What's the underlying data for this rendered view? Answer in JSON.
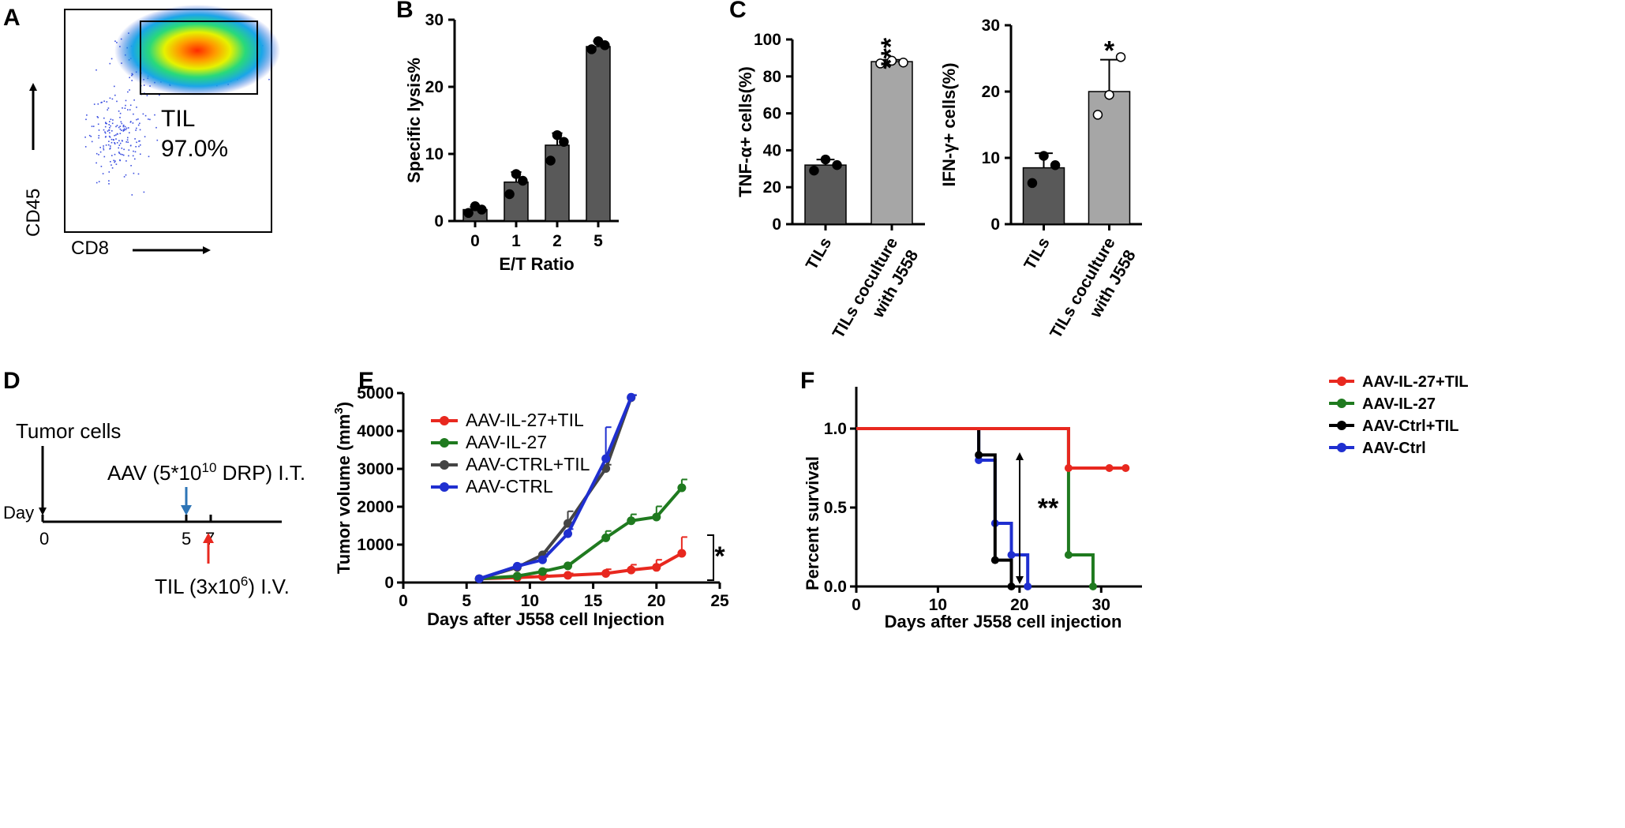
{
  "panels": {
    "a": "A",
    "b": "B",
    "c": "C",
    "d": "D",
    "e": "E",
    "f": "F"
  },
  "flow_plot": {
    "gate_label": "TIL",
    "gate_percent": "97.0%",
    "y_marker": "CD45",
    "x_marker": "CD8"
  },
  "timeline": {
    "day_label": "Day",
    "days": [
      "0",
      "5",
      "7"
    ],
    "tumor_label": "Tumor cells",
    "aav_label": "AAV (5*10",
    "aav_exp": "10",
    "aav_unit": " DRP)  I.T.",
    "til_label": "TIL (3x10",
    "til_exp": "6",
    "til_unit": ")  I.V.",
    "colors": {
      "aav_arrow": "#2e75b6",
      "til_arrow": "#e8281f"
    }
  },
  "chart_data": [
    {
      "id": "B",
      "type": "bar",
      "title": "",
      "categories": [
        "0",
        "1",
        "2",
        "5"
      ],
      "values": [
        1.7,
        5.8,
        11.3,
        26.0
      ],
      "errors": [
        0.4,
        1.5,
        1.8,
        0.8
      ],
      "points": [
        [
          1.2,
          2.2,
          1.7
        ],
        [
          4.0,
          7.0,
          6.0
        ],
        [
          9.0,
          12.8,
          11.8
        ],
        [
          25.6,
          26.8,
          26.2
        ]
      ],
      "xlabel": "E/T Ratio",
      "ylabel": "Specific lysis%",
      "ylim": [
        0,
        30
      ],
      "yticks": [
        0,
        10,
        20,
        30
      ],
      "bar_color": "#595959"
    },
    {
      "id": "C-left",
      "type": "bar",
      "categories": [
        "TILs",
        "TILs coculture"
      ],
      "category_line2": [
        "",
        "with J558"
      ],
      "values": [
        32,
        88
      ],
      "errors": [
        3,
        1
      ],
      "points": [
        [
          29,
          35,
          32
        ],
        [
          87,
          88.5,
          87.5
        ]
      ],
      "hollow": [
        false,
        true
      ],
      "xlabel": "",
      "ylabel": "TNF-α+ cells(%)",
      "ylim": [
        0,
        100
      ],
      "yticks": [
        0,
        20,
        40,
        60,
        80,
        100
      ],
      "significance": [
        "",
        "***"
      ],
      "bar_colors": [
        "#595959",
        "#a6a6a6"
      ]
    },
    {
      "id": "C-right",
      "type": "bar",
      "categories": [
        "TILs",
        "TILs coculture"
      ],
      "category_line2": [
        "",
        "with J558"
      ],
      "values": [
        8.5,
        20
      ],
      "errors": [
        2.2,
        4.8
      ],
      "points": [
        [
          6.2,
          10.3,
          8.9
        ],
        [
          16.5,
          19.5,
          25.2
        ]
      ],
      "hollow": [
        false,
        true
      ],
      "xlabel": "",
      "ylabel": "IFN-γ+ cells(%)",
      "ylim": [
        0,
        30
      ],
      "yticks": [
        0,
        10,
        20,
        30
      ],
      "significance": [
        "",
        "*"
      ],
      "bar_colors": [
        "#595959",
        "#a6a6a6"
      ]
    },
    {
      "id": "E",
      "type": "line",
      "xlabel": "Days after J558 cell Injection",
      "ylabel": "Tumor volume (mm",
      "ylabel_sup": "3",
      "ylabel_close": ")",
      "xlim": [
        0,
        25
      ],
      "ylim": [
        0,
        5000
      ],
      "xticks": [
        0,
        5,
        10,
        15,
        20,
        25
      ],
      "yticks": [
        0,
        1000,
        2000,
        3000,
        4000,
        5000
      ],
      "significance": "*",
      "series": [
        {
          "name": "AAV-IL-27+TIL",
          "color": "#e8281f",
          "x": [
            6,
            9,
            11,
            13,
            16,
            18,
            20,
            22
          ],
          "y": [
            100,
            130,
            160,
            190,
            240,
            330,
            400,
            770
          ],
          "err": [
            20,
            30,
            40,
            50,
            110,
            140,
            200,
            430
          ]
        },
        {
          "name": "AAV-IL-27",
          "color": "#1f7a1f",
          "x": [
            6,
            9,
            11,
            13,
            16,
            18,
            20,
            22
          ],
          "y": [
            100,
            170,
            290,
            440,
            1180,
            1630,
            1730,
            2500
          ],
          "err": [
            20,
            40,
            60,
            70,
            180,
            170,
            280,
            220
          ]
        },
        {
          "name": "AAV-CTRL+TIL",
          "color": "#444444",
          "x": [
            6,
            9,
            11,
            13,
            16,
            18
          ],
          "y": [
            100,
            400,
            730,
            1560,
            3010,
            4880
          ],
          "err": [
            20,
            60,
            90,
            320,
            100,
            60
          ]
        },
        {
          "name": "AAV-CTRL",
          "color": "#1f2fd0",
          "x": [
            6,
            9,
            11,
            13,
            16,
            18
          ],
          "y": [
            100,
            430,
            600,
            1290,
            3270,
            4890
          ],
          "err": [
            20,
            60,
            80,
            120,
            830,
            60
          ]
        }
      ]
    },
    {
      "id": "F",
      "type": "line",
      "subtype": "survival-step",
      "xlabel": "Days after J558 cell injection",
      "ylabel": "Percent survival",
      "xlim": [
        0,
        35
      ],
      "ylim": [
        0,
        1.0
      ],
      "xticks": [
        0,
        10,
        20,
        30
      ],
      "yticks": [
        "0.0",
        "0.5",
        "1.0"
      ],
      "significance": "**",
      "series": [
        {
          "name": "AAV-IL-27+TIL",
          "color": "#e8281f",
          "steps": [
            [
              0,
              1.0
            ],
            [
              26,
              0.75
            ],
            [
              33,
              0.75
            ]
          ],
          "marks": [
            [
              26,
              0.75
            ],
            [
              31,
              0.75
            ],
            [
              33,
              0.75
            ]
          ]
        },
        {
          "name": "AAV-IL-27",
          "color": "#1f7a1f",
          "steps": [
            [
              0,
              1.0
            ],
            [
              26,
              0.2
            ],
            [
              29,
              0.0
            ]
          ],
          "marks": [
            [
              26,
              0.2
            ],
            [
              29,
              0.0
            ]
          ]
        },
        {
          "name": "AAV-Ctrl+TIL",
          "color": "#000000",
          "steps": [
            [
              0,
              1.0
            ],
            [
              15,
              0.833
            ],
            [
              17,
              0.167
            ],
            [
              19,
              0.0
            ]
          ],
          "marks": [
            [
              15,
              0.833
            ],
            [
              17,
              0.167
            ],
            [
              19,
              0.0
            ]
          ]
        },
        {
          "name": "AAV-Ctrl",
          "color": "#1f2fd0",
          "steps": [
            [
              0,
              1.0
            ],
            [
              15,
              0.8
            ],
            [
              17,
              0.4
            ],
            [
              19,
              0.2
            ],
            [
              21,
              0.0
            ]
          ],
          "marks": [
            [
              15,
              0.8
            ],
            [
              17,
              0.4
            ],
            [
              19,
              0.2
            ],
            [
              21,
              0.0
            ]
          ]
        }
      ]
    }
  ]
}
